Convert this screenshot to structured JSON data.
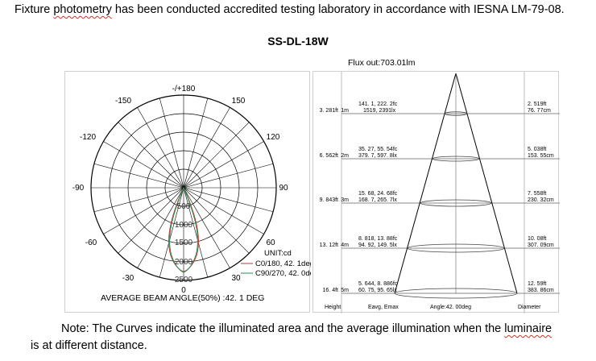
{
  "intro_text": {
    "part1": "Fixture ",
    "misspelled": "photometry",
    "part2": " has been conducted accredited testing laboratory in accordance with IESNA LM-79-08."
  },
  "model": "SS-DL-18W",
  "polar": {
    "angle_labels": {
      "top": "-/+180",
      "a150l": "-150",
      "a150r": "150",
      "a120l": "-120",
      "a120r": "120",
      "a90l": "-90",
      "a90r": "90",
      "a60l": "-60",
      "a60r": "60",
      "a30l": "-30",
      "a30r": "30",
      "bottom": "0"
    },
    "radial_labels": [
      "500",
      "1000",
      "1500",
      "2000",
      "2500"
    ],
    "unit": "UNIT:cd",
    "legend": [
      "C0/180, 42. 1deg",
      "C90/270, 42. 0deg"
    ],
    "beam_text": "AVERAGE BEAM ANGLE(50%) :42. 1 DEG",
    "colors": {
      "c0": "#c0392b",
      "c90": "#2e8b57"
    }
  },
  "cone": {
    "flux_out": "Flux out:703.01lm",
    "rows": [
      {
        "ft": "3. 281ft",
        "m": "1m",
        "fc": "141. 1, 222. 2fc",
        "lx": "1519, 2391lx",
        "dft": "2. 519ft",
        "dcm": "76. 77cm"
      },
      {
        "ft": "6. 562ft",
        "m": "2m",
        "fc": "35. 27, 55. 54fc",
        "lx": "379. 7, 597. 8lx",
        "dft": "5. 038ft",
        "dcm": "153. 55cm"
      },
      {
        "ft": "9. 843ft",
        "m": "3m",
        "fc": "15. 68, 24. 68fc",
        "lx": "168. 7, 265. 7lx",
        "dft": "7. 558ft",
        "dcm": "230. 32cm"
      },
      {
        "ft": "13. 12ft",
        "m": "4m",
        "fc": "8. 818, 13. 88fc",
        "lx": "94. 92, 149. 5lx",
        "dft": "10. 08ft",
        "dcm": "307. 09cm"
      },
      {
        "ft": "16. 4ft",
        "m": "5m",
        "fc": "5. 644, 8. 886fc",
        "lx": "60. 75, 95. 65lx",
        "dft": "12. 59ft",
        "dcm": "383. 86cm"
      }
    ],
    "footer": {
      "height": "Height",
      "eavg": "Eavg, Emax",
      "angle": "Angle:42. 00deg",
      "diameter": "Diameter"
    }
  },
  "note": {
    "line1_a": "Note: The Curves indicate the illuminated area and the average illumination when the ",
    "line1_b": "luminaire",
    "line2": "is at different distance."
  }
}
